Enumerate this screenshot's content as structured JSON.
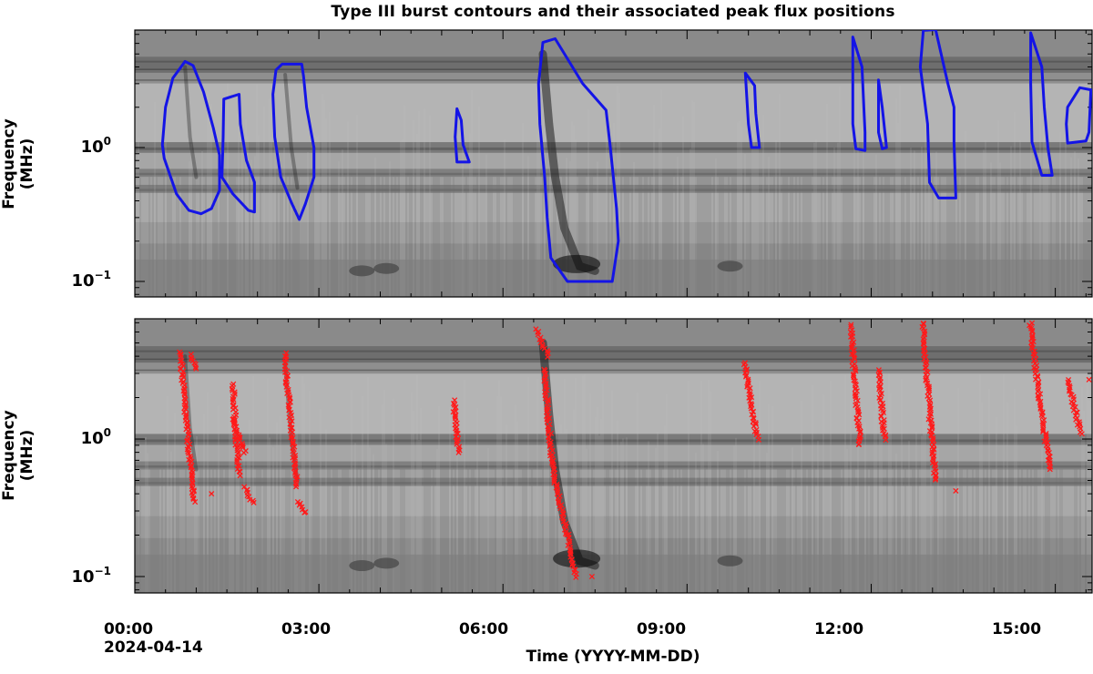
{
  "chart_data": [
    {
      "type": "heatmap",
      "panel": "top",
      "title": "Type III burst contours and their associated peak flux positions",
      "ylabel": "Frequency\n(MHz)",
      "y_scale": "log",
      "ylim_MHz": [
        0.075,
        8.5
      ],
      "y_ticks": [
        {
          "label_base": "10",
          "label_exp": "0",
          "value": 1.0
        },
        {
          "label_base": "10",
          "label_exp": "−1",
          "value": 0.1
        }
      ],
      "xlim_hours": [
        0,
        15.6
      ],
      "colormap": "grayscale (dark = high flux)",
      "contour_color": "#1414e6",
      "burst_contours": [
        {
          "points": [
            [
              0.82,
              4.4
            ],
            [
              0.95,
              4.1
            ],
            [
              1.12,
              2.6
            ],
            [
              1.28,
              1.4
            ],
            [
              1.38,
              0.88
            ],
            [
              1.38,
              0.48
            ],
            [
              1.25,
              0.35
            ],
            [
              1.08,
              0.32
            ],
            [
              0.88,
              0.34
            ],
            [
              0.68,
              0.45
            ],
            [
              0.48,
              0.83
            ],
            [
              0.45,
              1.05
            ],
            [
              0.5,
              2.0
            ],
            [
              0.62,
              3.3
            ]
          ]
        },
        {
          "points": [
            [
              1.45,
              2.3
            ],
            [
              1.7,
              2.5
            ],
            [
              1.72,
              1.5
            ],
            [
              1.82,
              0.8
            ],
            [
              1.95,
              0.55
            ],
            [
              1.95,
              0.33
            ],
            [
              1.85,
              0.34
            ],
            [
              1.6,
              0.45
            ],
            [
              1.42,
              0.6
            ],
            [
              1.44,
              1.2
            ]
          ]
        },
        {
          "points": [
            [
              2.3,
              3.8
            ],
            [
              2.4,
              4.2
            ],
            [
              2.72,
              4.2
            ],
            [
              2.75,
              3.4
            ],
            [
              2.8,
              2.0
            ],
            [
              2.92,
              1.0
            ],
            [
              2.92,
              0.6
            ],
            [
              2.78,
              0.38
            ],
            [
              2.68,
              0.29
            ],
            [
              2.55,
              0.39
            ],
            [
              2.38,
              0.6
            ],
            [
              2.28,
              1.2
            ],
            [
              2.25,
              2.5
            ]
          ]
        },
        {
          "points": [
            [
              5.25,
              1.95
            ],
            [
              5.32,
              1.6
            ],
            [
              5.35,
              1.05
            ],
            [
              5.45,
              0.78
            ],
            [
              5.25,
              0.78
            ],
            [
              5.22,
              1.2
            ]
          ]
        },
        {
          "points": [
            [
              6.65,
              6.1
            ],
            [
              6.85,
              6.5
            ],
            [
              7.3,
              3.0
            ],
            [
              7.68,
              1.9
            ],
            [
              7.75,
              1.0
            ],
            [
              7.85,
              0.35
            ],
            [
              7.88,
              0.2
            ],
            [
              7.78,
              0.1
            ],
            [
              7.05,
              0.1
            ],
            [
              6.78,
              0.15
            ],
            [
              6.72,
              0.3
            ],
            [
              6.68,
              0.6
            ],
            [
              6.6,
              1.5
            ],
            [
              6.58,
              3.0
            ]
          ]
        },
        {
          "points": [
            [
              9.95,
              3.6
            ],
            [
              10.1,
              2.9
            ],
            [
              10.12,
              1.8
            ],
            [
              10.18,
              1.0
            ],
            [
              10.05,
              1.0
            ],
            [
              10.0,
              1.5
            ],
            [
              9.97,
              2.5
            ]
          ]
        },
        {
          "points": [
            [
              11.7,
              6.7
            ],
            [
              11.85,
              4.0
            ],
            [
              11.88,
              2.0
            ],
            [
              11.9,
              1.3
            ],
            [
              11.9,
              0.95
            ],
            [
              11.75,
              0.98
            ],
            [
              11.7,
              1.5
            ],
            [
              11.7,
              3.5
            ]
          ]
        },
        {
          "points": [
            [
              12.12,
              3.2
            ],
            [
              12.18,
              2.0
            ],
            [
              12.25,
              1.0
            ],
            [
              12.18,
              0.98
            ],
            [
              12.12,
              1.3
            ]
          ]
        },
        {
          "points": [
            [
              12.85,
              7.5
            ],
            [
              13.05,
              7.6
            ],
            [
              13.25,
              3.0
            ],
            [
              13.35,
              2.0
            ],
            [
              13.35,
              1.1
            ],
            [
              13.38,
              0.42
            ],
            [
              13.1,
              0.42
            ],
            [
              12.95,
              0.55
            ],
            [
              12.92,
              1.5
            ],
            [
              12.8,
              4.0
            ]
          ]
        },
        {
          "points": [
            [
              14.6,
              7.2
            ],
            [
              14.78,
              4.0
            ],
            [
              14.82,
              2.0
            ],
            [
              14.88,
              1.0
            ],
            [
              14.95,
              0.62
            ],
            [
              14.78,
              0.62
            ],
            [
              14.62,
              1.1
            ],
            [
              14.6,
              3.0
            ]
          ]
        },
        {
          "points": [
            [
              15.2,
              2.0
            ],
            [
              15.4,
              2.8
            ],
            [
              15.58,
              2.7
            ],
            [
              15.55,
              1.3
            ],
            [
              15.5,
              1.12
            ],
            [
              15.2,
              1.08
            ],
            [
              15.18,
              1.5
            ]
          ]
        }
      ]
    },
    {
      "type": "scatter",
      "panel": "bottom",
      "ylabel": "Frequency\n(MHz)",
      "y_scale": "log",
      "ylim_MHz": [
        0.075,
        8.5
      ],
      "y_ticks": [
        {
          "label_base": "10",
          "label_exp": "0",
          "value": 1.0
        },
        {
          "label_base": "10",
          "label_exp": "−1",
          "value": 0.1
        }
      ],
      "xlabel": "Time (YYYY-MM-DD)",
      "xlim_hours": [
        0,
        15.6
      ],
      "x_ticks": [
        {
          "label": "00:00",
          "value": 0
        },
        {
          "label": "03:00",
          "value": 3
        },
        {
          "label": "06:00",
          "value": 6
        },
        {
          "label": "09:00",
          "value": 9
        },
        {
          "label": "12:00",
          "value": 12
        },
        {
          "label": "15:00",
          "value": 15
        }
      ],
      "x_date_label": "2024-04-14",
      "marker": "x",
      "marker_color": "#ff1a1a",
      "peak_flux_tracks": [
        {
          "f_start": 4.3,
          "f_end": 0.35,
          "t_start": 0.75,
          "t_end": 0.97
        },
        {
          "f_start": 4.1,
          "f_end": 3.2,
          "t_start": 0.92,
          "t_end": 0.99
        },
        {
          "f_start": 2.5,
          "f_end": 0.55,
          "t_start": 1.6,
          "t_end": 1.7
        },
        {
          "f_start": 1.4,
          "f_end": 0.8,
          "t_start": 1.6,
          "t_end": 1.8
        },
        {
          "f_start": 0.45,
          "f_end": 0.34,
          "t_start": 1.8,
          "t_end": 1.93
        },
        {
          "f_start": 4.2,
          "f_end": 0.45,
          "t_start": 2.45,
          "t_end": 2.65
        },
        {
          "f_start": 0.35,
          "f_end": 0.29,
          "t_start": 2.68,
          "t_end": 2.78
        },
        {
          "f_start": 1.9,
          "f_end": 0.8,
          "t_start": 5.2,
          "t_end": 5.28
        },
        {
          "f_start": 6.3,
          "f_end": 4.0,
          "t_start": 6.55,
          "t_end": 6.75
        },
        {
          "f_start": 3.2,
          "f_end": 0.7,
          "t_start": 6.68,
          "t_end": 6.8
        },
        {
          "f_start": 0.7,
          "f_end": 0.2,
          "t_start": 6.8,
          "t_end": 7.05
        },
        {
          "f_start": 0.2,
          "f_end": 0.1,
          "t_start": 7.05,
          "t_end": 7.2
        },
        {
          "f_start": 3.6,
          "f_end": 1.0,
          "t_start": 9.95,
          "t_end": 10.15
        },
        {
          "f_start": 6.7,
          "f_end": 0.9,
          "t_start": 11.68,
          "t_end": 11.82
        },
        {
          "f_start": 3.2,
          "f_end": 1.0,
          "t_start": 12.12,
          "t_end": 12.22
        },
        {
          "f_start": 7.0,
          "f_end": 0.5,
          "t_start": 12.85,
          "t_end": 13.05
        },
        {
          "f_start": 7.0,
          "f_end": 0.6,
          "t_start": 14.6,
          "t_end": 14.92
        },
        {
          "f_start": 2.7,
          "f_end": 1.1,
          "t_start": 15.22,
          "t_end": 15.42
        }
      ],
      "isolated_points": [
        [
          1.25,
          0.4
        ],
        [
          7.45,
          0.1
        ],
        [
          13.38,
          0.42
        ],
        [
          15.55,
          2.7
        ]
      ]
    }
  ],
  "labels": {
    "title": "Type III burst contours and their associated peak flux positions",
    "ylabel_line1": "Frequency",
    "ylabel_line2": "(MHz)",
    "xlabel": "Time (YYYY-MM-DD)",
    "xtick_0": "00:00",
    "xtick_3": "03:00",
    "xtick_6": "06:00",
    "xtick_9": "09:00",
    "xtick_12": "12:00",
    "xtick_15": "15:00",
    "xdate": "2024-04-14",
    "ytick_base": "10",
    "ytick_exp_0": "0",
    "ytick_exp_m1": "−1"
  }
}
